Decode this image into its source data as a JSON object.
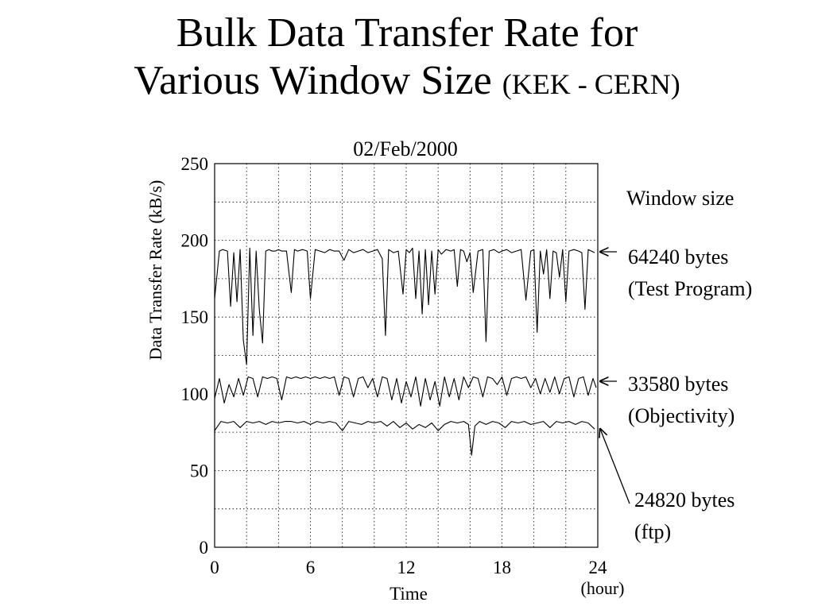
{
  "slide": {
    "title_line1": "Bulk Data Transfer Rate for",
    "title_line2": "Various Window Size",
    "title_suffix": "(KEK - CERN)"
  },
  "chart_data": {
    "type": "line",
    "title": "02/Feb/2000",
    "xlabel": "Time",
    "xunit": "(hour)",
    "ylabel": "Data Transfer Rate (kB/s)",
    "xlim": [
      0,
      24
    ],
    "ylim": [
      0,
      250
    ],
    "xticks": [
      0,
      6,
      12,
      18,
      24
    ],
    "yticks": [
      0,
      50,
      100,
      150,
      200,
      250
    ],
    "grid": true,
    "legend_title": "Window size",
    "series": [
      {
        "name": "64240 bytes (Test Program)",
        "label_lines": [
          "64240 bytes",
          "(Test Program)"
        ],
        "x": [
          0,
          0.3,
          0.5,
          0.8,
          1.0,
          1.2,
          1.4,
          1.6,
          1.8,
          2.0,
          2.2,
          2.4,
          2.6,
          2.8,
          3.0,
          3.2,
          3.4,
          3.6,
          3.8,
          4.0,
          4.2,
          4.5,
          4.8,
          5.0,
          5.2,
          5.5,
          5.8,
          6.0,
          6.3,
          6.6,
          6.9,
          7.2,
          7.5,
          7.8,
          8.1,
          8.4,
          8.7,
          9.0,
          9.3,
          9.6,
          9.9,
          10.2,
          10.5,
          10.7,
          10.9,
          11.2,
          11.5,
          11.8,
          12.0,
          12.2,
          12.4,
          12.6,
          12.8,
          13.0,
          13.2,
          13.4,
          13.6,
          13.8,
          14.0,
          14.2,
          14.5,
          14.8,
          15.0,
          15.2,
          15.4,
          15.6,
          15.8,
          16.0,
          16.2,
          16.5,
          16.8,
          17.0,
          17.2,
          17.5,
          17.8,
          18.0,
          18.3,
          18.6,
          18.9,
          19.2,
          19.5,
          19.8,
          20.0,
          20.2,
          20.4,
          20.6,
          20.8,
          21.0,
          21.2,
          21.4,
          21.6,
          21.8,
          22.0,
          22.2,
          22.5,
          22.8,
          23.0,
          23.2,
          23.4,
          23.6,
          23.8
        ],
        "values": [
          162,
          193,
          194,
          193,
          157,
          192,
          160,
          194,
          135,
          119,
          195,
          138,
          193,
          155,
          133,
          193,
          194,
          193,
          193,
          194,
          193,
          193,
          166,
          194,
          193,
          194,
          193,
          162,
          194,
          193,
          192,
          194,
          193,
          193,
          187,
          194,
          192,
          193,
          194,
          192,
          193,
          194,
          188,
          138,
          194,
          192,
          193,
          165,
          194,
          192,
          195,
          162,
          193,
          152,
          194,
          158,
          193,
          165,
          194,
          191,
          194,
          193,
          194,
          170,
          194,
          193,
          186,
          192,
          166,
          193,
          194,
          134,
          193,
          194,
          192,
          193,
          194,
          192,
          193,
          194,
          161,
          193,
          194,
          140,
          193,
          178,
          194,
          162,
          193,
          192,
          176,
          194,
          160,
          193,
          194,
          193,
          192,
          155,
          194,
          193,
          192
        ]
      },
      {
        "name": "33580 bytes (Objectivity)",
        "label_lines": [
          "33580 bytes",
          "(Objectivity)"
        ],
        "x": [
          0,
          0.3,
          0.6,
          0.9,
          1.2,
          1.5,
          1.8,
          2.1,
          2.4,
          2.7,
          3.0,
          3.3,
          3.6,
          3.9,
          4.2,
          4.5,
          4.8,
          5.1,
          5.4,
          5.7,
          6.0,
          6.3,
          6.6,
          6.9,
          7.2,
          7.5,
          7.8,
          8.1,
          8.4,
          8.7,
          9.0,
          9.3,
          9.6,
          9.9,
          10.2,
          10.5,
          10.8,
          11.1,
          11.4,
          11.7,
          12.0,
          12.3,
          12.6,
          12.9,
          13.2,
          13.5,
          13.8,
          14.1,
          14.4,
          14.7,
          15.0,
          15.3,
          15.6,
          15.9,
          16.2,
          16.5,
          16.8,
          17.1,
          17.4,
          17.7,
          18.0,
          18.3,
          18.6,
          18.9,
          19.2,
          19.5,
          19.8,
          20.1,
          20.4,
          20.7,
          21.0,
          21.3,
          21.6,
          21.9,
          22.2,
          22.5,
          22.8,
          23.1,
          23.4,
          23.7,
          23.9
        ],
        "values": [
          97,
          110,
          94,
          106,
          98,
          110,
          99,
          111,
          110,
          98,
          111,
          110,
          111,
          110,
          96,
          111,
          110,
          111,
          110,
          111,
          110,
          111,
          110,
          111,
          110,
          111,
          99,
          111,
          110,
          98,
          110,
          111,
          104,
          110,
          98,
          111,
          110,
          96,
          110,
          94,
          108,
          98,
          111,
          92,
          110,
          96,
          108,
          92,
          111,
          98,
          110,
          96,
          111,
          104,
          111,
          110,
          98,
          111,
          110,
          106,
          111,
          99,
          110,
          111,
          110,
          111,
          104,
          110,
          100,
          110,
          101,
          111,
          100,
          110,
          111,
          98,
          110,
          111,
          99,
          110,
          104
        ]
      },
      {
        "name": "24820 bytes (ftp)",
        "label_lines": [
          "24820 bytes",
          "(ftp)"
        ],
        "x": [
          0,
          0.4,
          0.8,
          1.2,
          1.6,
          2.0,
          2.4,
          2.8,
          3.2,
          3.6,
          4.0,
          4.4,
          4.8,
          5.2,
          5.6,
          6.0,
          6.4,
          6.8,
          7.2,
          7.6,
          8.0,
          8.4,
          8.8,
          9.2,
          9.6,
          10.0,
          10.4,
          10.8,
          11.2,
          11.6,
          12.0,
          12.4,
          12.8,
          13.2,
          13.6,
          14.0,
          14.4,
          14.8,
          15.2,
          15.6,
          15.9,
          16.1,
          16.3,
          16.6,
          17.0,
          17.4,
          17.8,
          18.2,
          18.6,
          19.0,
          19.4,
          19.8,
          20.2,
          20.6,
          21.0,
          21.4,
          21.8,
          22.2,
          22.6,
          23.0,
          23.4,
          23.8
        ],
        "values": [
          76,
          82,
          81,
          82,
          78,
          82,
          81,
          82,
          80,
          82,
          81,
          82,
          82,
          81,
          82,
          80,
          82,
          81,
          82,
          81,
          76,
          82,
          81,
          80,
          82,
          81,
          82,
          79,
          82,
          78,
          81,
          77,
          80,
          78,
          81,
          76,
          80,
          82,
          81,
          82,
          80,
          60,
          79,
          82,
          80,
          82,
          81,
          78,
          82,
          81,
          82,
          80,
          81,
          82,
          78,
          82,
          81,
          82,
          80,
          82,
          81,
          77
        ]
      }
    ]
  }
}
